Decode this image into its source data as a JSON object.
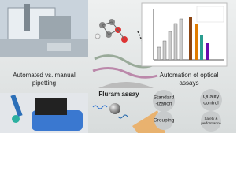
{
  "left_caption": {
    "lines": [
      "Automated vs. manual",
      "pipetting"
    ]
  },
  "center_caption": "Fluram assay",
  "right_caption": {
    "lines": [
      "Automation of optical",
      "assays"
    ]
  },
  "nodes": [
    {
      "lines": [
        "Standard",
        "-ization"
      ]
    },
    {
      "lines": [
        "Quality",
        "control"
      ]
    },
    {
      "lines": [
        "Grouping"
      ]
    },
    {
      "lines": [
        "Safety &",
        "performance"
      ]
    }
  ]
}
